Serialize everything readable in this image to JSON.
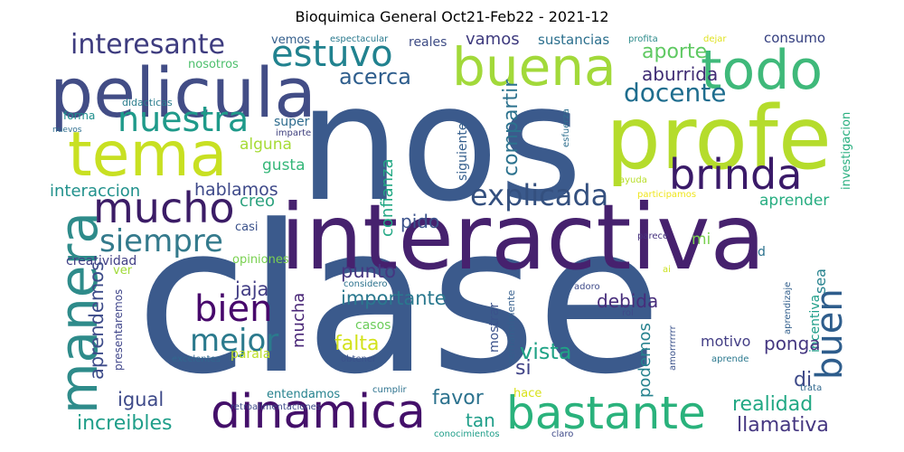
{
  "title": "Bioquimica General Oct21-Feb22 - 2021-12",
  "words": [
    {
      "text": "clase",
      "color": "#3b5a8c"
    },
    {
      "text": "nos",
      "color": "#3b5a8c"
    },
    {
      "text": "interactiva",
      "color": "#46216e"
    },
    {
      "text": "profe",
      "color": "#b5dc2c"
    },
    {
      "text": "pelicula",
      "color": "#424d86"
    },
    {
      "text": "tema",
      "color": "#c8e022"
    },
    {
      "text": "buena",
      "color": "#a2d93a"
    },
    {
      "text": "todo",
      "color": "#3fb97a"
    },
    {
      "text": "manera",
      "color": "#2e8b8a"
    },
    {
      "text": "dinamica",
      "color": "#44106a"
    },
    {
      "text": "bastante",
      "color": "#2ab27c"
    },
    {
      "text": "brinda",
      "color": "#3a1a68"
    },
    {
      "text": "mucho",
      "color": "#3b1c66"
    },
    {
      "text": "estuvo",
      "color": "#21828f"
    },
    {
      "text": "nuestra",
      "color": "#1f9a8a"
    },
    {
      "text": "interesante",
      "color": "#3e3c7f"
    },
    {
      "text": "siempre",
      "color": "#347a8c"
    },
    {
      "text": "explicada",
      "color": "#34507f"
    },
    {
      "text": "bien",
      "color": "#47086b"
    },
    {
      "text": "mejor",
      "color": "#2b7a8d"
    },
    {
      "text": "buen",
      "color": "#2e5d8c"
    },
    {
      "text": "docente",
      "color": "#1e6d8e"
    },
    {
      "text": "aporte",
      "color": "#5fc962"
    },
    {
      "text": "acerca",
      "color": "#2f5e8d"
    },
    {
      "text": "aburrida",
      "color": "#3f2b73"
    },
    {
      "text": "vamos",
      "color": "#3e3a7e"
    },
    {
      "text": "consumo",
      "color": "#333e7f"
    },
    {
      "text": "sustancias",
      "color": "#2b6f8d"
    },
    {
      "text": "reales",
      "color": "#3f4d86"
    },
    {
      "text": "vemos",
      "color": "#36608d"
    },
    {
      "text": "espectacular",
      "color": "#2a7a8e"
    },
    {
      "text": "profita",
      "color": "#2b8a8a"
    },
    {
      "text": "dejar",
      "color": "#dfe21f"
    },
    {
      "text": "nosotros",
      "color": "#4cbf6c"
    },
    {
      "text": "didacticas",
      "color": "#2c7e8e"
    },
    {
      "text": "forma",
      "color": "#1f8f8d"
    },
    {
      "text": "nuevos",
      "color": "#2e6e8e"
    },
    {
      "text": "super",
      "color": "#2f6c8e"
    },
    {
      "text": "imparte",
      "color": "#40417f"
    },
    {
      "text": "alguna",
      "color": "#a6db35"
    },
    {
      "text": "gusta",
      "color": "#35b779"
    },
    {
      "text": "compartir",
      "color": "#2c728e"
    },
    {
      "text": "siguiente",
      "color": "#355f8d"
    },
    {
      "text": "confianza",
      "color": "#22a884"
    },
    {
      "text": "interaccion",
      "color": "#21918c"
    },
    {
      "text": "hablamos",
      "color": "#3e4989"
    },
    {
      "text": "creo",
      "color": "#2ca27e"
    },
    {
      "text": "pido",
      "color": "#3b528b"
    },
    {
      "text": "aprender",
      "color": "#27ad81"
    },
    {
      "text": "investigacion",
      "color": "#29af7f"
    },
    {
      "text": "esfuerza",
      "color": "#2e6f8e"
    },
    {
      "text": "ayuda",
      "color": "#b8de29"
    },
    {
      "text": "participamos",
      "color": "#efe51c"
    },
    {
      "text": "mi",
      "color": "#7ad151"
    },
    {
      "text": "casi",
      "color": "#3b528b"
    },
    {
      "text": "parece",
      "color": "#46327e"
    },
    {
      "text": "d",
      "color": "#2c728e"
    },
    {
      "text": "creatividad",
      "color": "#424086"
    },
    {
      "text": "opiniones",
      "color": "#7ad151"
    },
    {
      "text": "ver",
      "color": "#a0da39"
    },
    {
      "text": "ai",
      "color": "#cae11f"
    },
    {
      "text": "punto",
      "color": "#453781"
    },
    {
      "text": "jaja",
      "color": "#433e85"
    },
    {
      "text": "sea",
      "color": "#26828e"
    },
    {
      "text": "aprendemos",
      "color": "#3e4c8a"
    },
    {
      "text": "mucha",
      "color": "#482576"
    },
    {
      "text": "importante",
      "color": "#2a788e"
    },
    {
      "text": "considero",
      "color": "#2c728e"
    },
    {
      "text": "adoro",
      "color": "#3e4a89"
    },
    {
      "text": "debida",
      "color": "#472d7b"
    },
    {
      "text": "aprendizaje",
      "color": "#34608d"
    },
    {
      "text": "incentiva",
      "color": "#1f9e89"
    },
    {
      "text": "presentaremos",
      "color": "#40468a"
    },
    {
      "text": "casos",
      "color": "#6ccd5a"
    },
    {
      "text": "mostrar",
      "color": "#3b528b"
    },
    {
      "text": "semanalmente",
      "color": "#355f8d"
    },
    {
      "text": "rol",
      "color": "#3e4a89"
    },
    {
      "text": "amorrrrrrr",
      "color": "#3b528b"
    },
    {
      "text": "falta",
      "color": "#d2e21b"
    },
    {
      "text": "motivo",
      "color": "#433e85"
    },
    {
      "text": "ponga",
      "color": "#453781"
    },
    {
      "text": "vista",
      "color": "#20a386"
    },
    {
      "text": "si",
      "color": "#414487"
    },
    {
      "text": "parala",
      "color": "#bddf26"
    },
    {
      "text": "excelentes",
      "color": "#31688e"
    },
    {
      "text": "obtener",
      "color": "#3b528b"
    },
    {
      "text": "aprende",
      "color": "#2a788e"
    },
    {
      "text": "podemos",
      "color": "#26828e"
    },
    {
      "text": "di",
      "color": "#3e4a89"
    },
    {
      "text": "igual",
      "color": "#3e4a89"
    },
    {
      "text": "favor",
      "color": "#2c728e"
    },
    {
      "text": "entendamos",
      "color": "#26828e"
    },
    {
      "text": "cumplir",
      "color": "#2c728e"
    },
    {
      "text": "hace",
      "color": "#d8e219"
    },
    {
      "text": "trata",
      "color": "#31688e"
    },
    {
      "text": "realidad",
      "color": "#22a884"
    },
    {
      "text": "increibles",
      "color": "#1f9e89"
    },
    {
      "text": "tan",
      "color": "#1f9e89"
    },
    {
      "text": "llamativa",
      "color": "#453781"
    },
    {
      "text": "retroalimentaciones",
      "color": "#3e4a89"
    },
    {
      "text": "conocimientos",
      "color": "#1f9e89"
    },
    {
      "text": "claro",
      "color": "#3e4a89"
    }
  ]
}
